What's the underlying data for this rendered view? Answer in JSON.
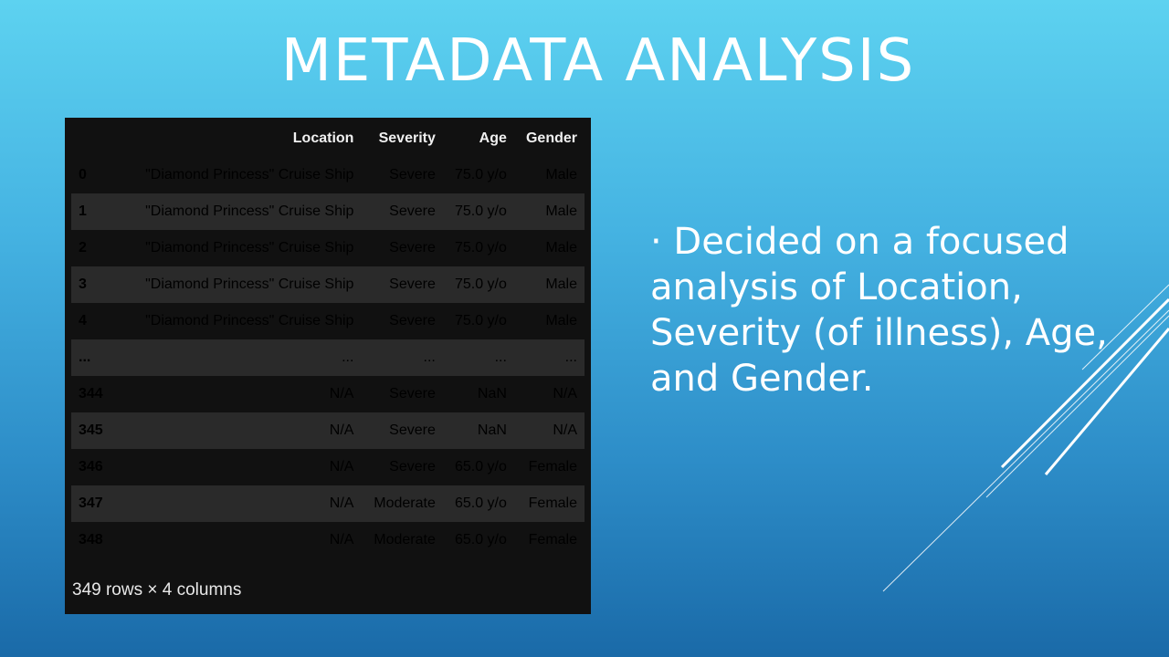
{
  "slide": {
    "title": "METADATA ANALYSIS",
    "bullet": "· Decided on a focused analysis of Location, Severity (of illness), Age, and Gender."
  },
  "dataframe": {
    "columns": [
      "",
      "Location",
      "Severity",
      "Age",
      "Gender"
    ],
    "rows": [
      [
        "0",
        "\"Diamond Princess\" Cruise Ship",
        "Severe",
        "75.0 y/o",
        "Male"
      ],
      [
        "1",
        "\"Diamond Princess\" Cruise Ship",
        "Severe",
        "75.0 y/o",
        "Male"
      ],
      [
        "2",
        "\"Diamond Princess\" Cruise Ship",
        "Severe",
        "75.0 y/o",
        "Male"
      ],
      [
        "3",
        "\"Diamond Princess\" Cruise Ship",
        "Severe",
        "75.0 y/o",
        "Male"
      ],
      [
        "4",
        "\"Diamond Princess\" Cruise Ship",
        "Severe",
        "75.0 y/o",
        "Male"
      ],
      [
        "...",
        "...",
        "...",
        "...",
        "..."
      ],
      [
        "344",
        "N/A",
        "Severe",
        "NaN",
        "N/A"
      ],
      [
        "345",
        "N/A",
        "Severe",
        "NaN",
        "N/A"
      ],
      [
        "346",
        "N/A",
        "Severe",
        "65.0 y/o",
        "Female"
      ],
      [
        "347",
        "N/A",
        "Moderate",
        "65.0 y/o",
        "Female"
      ],
      [
        "348",
        "N/A",
        "Moderate",
        "65.0 y/o",
        "Female"
      ]
    ],
    "footer": "349 rows × 4 columns"
  },
  "colors": {
    "panel": "#111111",
    "stripe": "#2a2a2a",
    "text": "#e8e8e8"
  }
}
